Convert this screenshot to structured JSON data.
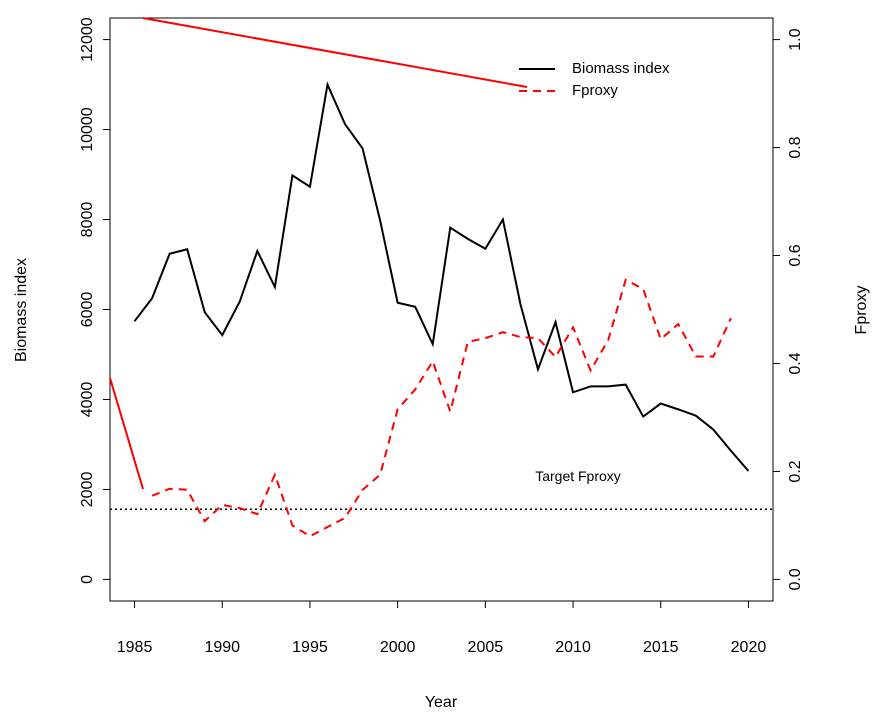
{
  "chart_data": {
    "type": "line",
    "xlabel": "Year",
    "ylabel": "Biomass index",
    "y2label": "Fproxy",
    "x": [
      1985,
      1986,
      1987,
      1988,
      1989,
      1990,
      1991,
      1992,
      1993,
      1994,
      1995,
      1996,
      1997,
      1998,
      1999,
      2000,
      2001,
      2002,
      2003,
      2004,
      2005,
      2006,
      2007,
      2008,
      2009,
      2010,
      2011,
      2012,
      2013,
      2014,
      2015,
      2016,
      2017,
      2018,
      2019,
      2020
    ],
    "series": [
      {
        "name": "Biomass index",
        "color": "#000000",
        "dash": false,
        "values": [
          5740,
          6250,
          7240,
          7340,
          5940,
          5430,
          6180,
          7300,
          6500,
          8980,
          8730,
          11000,
          10120,
          9580,
          7980,
          6150,
          6060,
          5230,
          7820,
          7570,
          7350,
          8000,
          6120,
          4670,
          5720,
          4160,
          4290,
          4290,
          4330,
          3620,
          3910,
          3780,
          3640,
          3330,
          2860,
          2410
        ]
      },
      {
        "name": "Fproxy",
        "color": "#ff0000",
        "dash": true,
        "axis": "y2",
        "values": [
          null,
          0.155,
          0.168,
          0.166,
          0.108,
          0.138,
          0.132,
          0.121,
          0.194,
          0.1,
          0.08,
          0.097,
          0.114,
          0.166,
          0.194,
          0.315,
          0.352,
          0.404,
          0.311,
          0.44,
          0.447,
          0.458,
          0.449,
          0.447,
          0.412,
          0.467,
          0.387,
          0.443,
          0.555,
          0.538,
          0.445,
          0.473,
          0.413,
          0.413,
          0.484,
          null
        ]
      }
    ],
    "reference_line": {
      "value": 0.13,
      "label": "Target Fproxy",
      "axis": "y2"
    },
    "xlim": [
      1983.6,
      2021.4
    ],
    "xticks": [
      1985,
      1990,
      1995,
      2000,
      2005,
      2010,
      2015,
      2020
    ],
    "ylim": [
      -480,
      12480
    ],
    "yticks": [
      0,
      2000,
      4000,
      6000,
      8000,
      10000,
      12000
    ],
    "y2lim": [
      -0.04,
      1.04
    ],
    "y2ticks": [
      {
        "value": 0,
        "label": "0.0"
      },
      0.2,
      0.4,
      0.6,
      0.8,
      {
        "value": 1,
        "label": "1.0"
      }
    ],
    "legend": "top-right"
  }
}
